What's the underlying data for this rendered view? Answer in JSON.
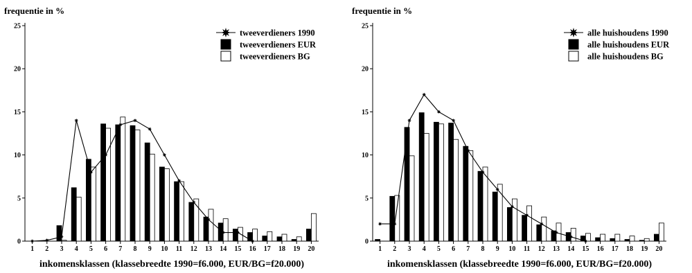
{
  "chart_data": [
    {
      "type": "bar",
      "title": "",
      "ylabel": "frequentie in %",
      "xlabel": "inkomensklassen (klassebreedte 1990=f6.000, EUR/BG=f20.000)",
      "ylim": [
        0,
        25
      ],
      "yticks": [
        0,
        5,
        10,
        15,
        20,
        25
      ],
      "categories": [
        "1",
        "2",
        "3",
        "4",
        "5",
        "6",
        "7",
        "8",
        "9",
        "10",
        "11",
        "12",
        "13",
        "14",
        "15",
        "16",
        "17",
        "18",
        "19",
        "20"
      ],
      "legend_position": "top-right",
      "series": [
        {
          "name": "tweeverdieners 1990",
          "kind": "line-star",
          "values": [
            0,
            0.1,
            0.5,
            14.0,
            8.0,
            10.0,
            13.5,
            14.0,
            13.0,
            10.0,
            7.0,
            4.5,
            2.5,
            1.0,
            1.0,
            0,
            null,
            null,
            null,
            null
          ]
        },
        {
          "name": "tweeverdieners EUR",
          "kind": "bar-filled",
          "values": [
            0,
            0,
            1.8,
            6.2,
            9.5,
            13.6,
            13.5,
            13.4,
            11.4,
            8.6,
            6.9,
            4.5,
            2.8,
            2.1,
            1.4,
            1.0,
            0.6,
            0.5,
            0.2,
            1.4
          ]
        },
        {
          "name": "tweeverdieners BG",
          "kind": "bar-open",
          "values": [
            0,
            0,
            0.1,
            5.1,
            8.6,
            13.1,
            14.4,
            12.9,
            10.1,
            8.4,
            6.9,
            4.9,
            3.7,
            2.6,
            1.6,
            1.4,
            1.1,
            0.8,
            0.5,
            3.2
          ]
        }
      ],
      "colors": {
        "line": "#000000",
        "bar_filled": "#000000",
        "bar_open": "#ffffff"
      }
    },
    {
      "type": "bar",
      "title": "",
      "ylabel": "frequentie in %",
      "xlabel": "inkomensklassen (klassebreedte 1990=f6.000, EUR/BG=f20.000)",
      "ylim": [
        0,
        25
      ],
      "yticks": [
        0,
        5,
        10,
        15,
        20,
        25
      ],
      "categories": [
        "1",
        "2",
        "3",
        "4",
        "5",
        "6",
        "7",
        "8",
        "9",
        "10",
        "11",
        "12",
        "13",
        "14",
        "15",
        "16",
        "17",
        "18",
        "19",
        "20"
      ],
      "legend_position": "top-right",
      "series": [
        {
          "name": "alle huishoudens 1990",
          "kind": "line-star",
          "values": [
            2.0,
            2.0,
            14.0,
            17.0,
            15.0,
            14.0,
            10.5,
            8.0,
            6.0,
            4.0,
            3.0,
            2.0,
            1.0,
            0.5,
            0,
            null,
            null,
            null,
            null,
            null
          ]
        },
        {
          "name": "alle huishoudens EUR",
          "kind": "bar-filled",
          "values": [
            0.2,
            5.2,
            13.2,
            14.9,
            13.8,
            13.7,
            11.0,
            8.1,
            5.7,
            3.9,
            3.0,
            1.9,
            1.2,
            1.0,
            0.6,
            0.4,
            0.3,
            0.2,
            0.1,
            0.8
          ]
        },
        {
          "name": "alle huishoudens BG",
          "kind": "bar-open",
          "values": [
            0,
            5.3,
            9.9,
            12.5,
            13.6,
            11.8,
            10.5,
            8.6,
            6.6,
            4.9,
            4.1,
            2.8,
            2.1,
            1.5,
            0.9,
            0.8,
            0.8,
            0.6,
            0.3,
            2.1
          ]
        }
      ],
      "colors": {
        "line": "#000000",
        "bar_filled": "#000000",
        "bar_open": "#ffffff"
      }
    }
  ]
}
